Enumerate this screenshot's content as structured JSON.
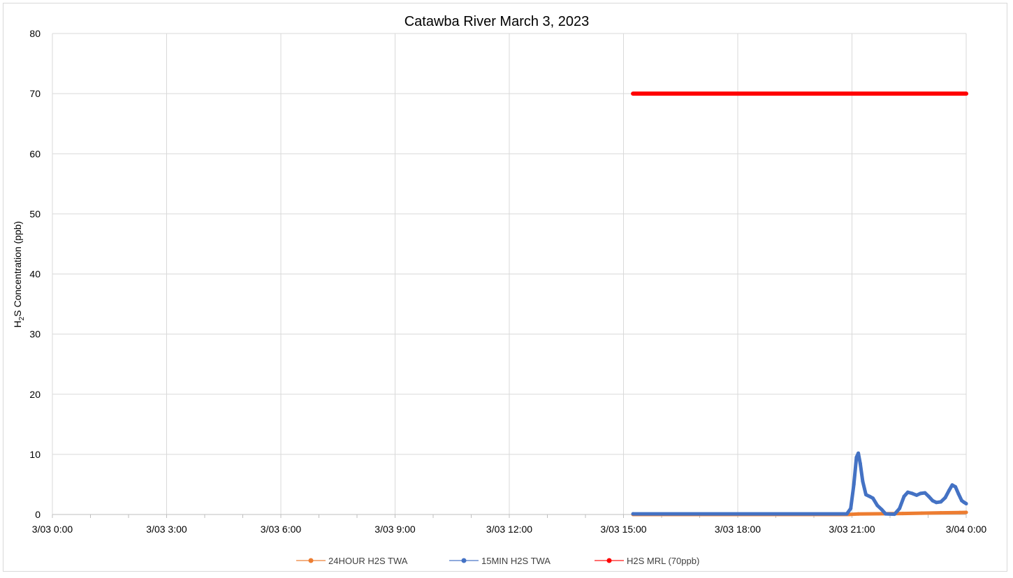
{
  "chart_data": {
    "type": "line",
    "title": "Catawba River March 3, 2023",
    "ylabel": {
      "prefix": "H",
      "subscript": "2",
      "suffix": "S Concentration (ppb)"
    },
    "xlabel": "",
    "x_ticks": [
      "3/03 0:00",
      "3/03 3:00",
      "3/03 6:00",
      "3/03 9:00",
      "3/03 12:00",
      "3/03 15:00",
      "3/03 18:00",
      "3/03 21:00",
      "3/04 0:00"
    ],
    "xlim": [
      "3/03 0:00",
      "3/04 0:00"
    ],
    "ylim": [
      0,
      80
    ],
    "y_ticks": [
      0,
      10,
      20,
      30,
      40,
      50,
      60,
      70,
      80
    ],
    "grid": true,
    "legend_position": "bottom",
    "series": [
      {
        "name": "24HOUR H2S TWA",
        "color": "#ed7d31",
        "points": [
          [
            "3/03 15:15",
            0.0
          ],
          [
            "3/03 20:55",
            0.0
          ],
          [
            "3/03 21:10",
            0.08
          ],
          [
            "3/03 21:40",
            0.12
          ],
          [
            "3/03 22:20",
            0.16
          ],
          [
            "3/03 22:50",
            0.22
          ],
          [
            "3/03 23:20",
            0.28
          ],
          [
            "3/03 23:50",
            0.33
          ],
          [
            "3/04 0:00",
            0.35
          ]
        ]
      },
      {
        "name": "15MIN H2S TWA",
        "color": "#4472c4",
        "points": [
          [
            "3/03 15:15",
            0.1
          ],
          [
            "3/03 20:52",
            0.1
          ],
          [
            "3/03 20:58",
            1.0
          ],
          [
            "3/03 21:03",
            5.0
          ],
          [
            "3/03 21:07",
            9.5
          ],
          [
            "3/03 21:10",
            10.2
          ],
          [
            "3/03 21:13",
            8.5
          ],
          [
            "3/03 21:17",
            5.5
          ],
          [
            "3/03 21:22",
            3.3
          ],
          [
            "3/03 21:28",
            3.0
          ],
          [
            "3/03 21:33",
            2.7
          ],
          [
            "3/03 21:40",
            1.5
          ],
          [
            "3/03 21:47",
            0.8
          ],
          [
            "3/03 21:53",
            0.1
          ],
          [
            "3/03 22:07",
            0.05
          ],
          [
            "3/03 22:15",
            1.0
          ],
          [
            "3/03 22:22",
            3.0
          ],
          [
            "3/03 22:28",
            3.7
          ],
          [
            "3/03 22:35",
            3.5
          ],
          [
            "3/03 22:42",
            3.2
          ],
          [
            "3/03 22:48",
            3.5
          ],
          [
            "3/03 22:55",
            3.6
          ],
          [
            "3/03 23:01",
            3.0
          ],
          [
            "3/03 23:07",
            2.3
          ],
          [
            "3/03 23:13",
            2.0
          ],
          [
            "3/03 23:20",
            2.1
          ],
          [
            "3/03 23:27",
            2.8
          ],
          [
            "3/03 23:33",
            4.0
          ],
          [
            "3/03 23:38",
            4.9
          ],
          [
            "3/03 23:43",
            4.6
          ],
          [
            "3/03 23:48",
            3.4
          ],
          [
            "3/03 23:53",
            2.3
          ],
          [
            "3/03 23:57",
            2.0
          ],
          [
            "3/04 0:00",
            1.8
          ]
        ]
      },
      {
        "name": "H2S MRL (70ppb)",
        "color": "#ff0000",
        "points": [
          [
            "3/03 15:15",
            70
          ],
          [
            "3/04 0:00",
            70
          ]
        ]
      }
    ]
  }
}
